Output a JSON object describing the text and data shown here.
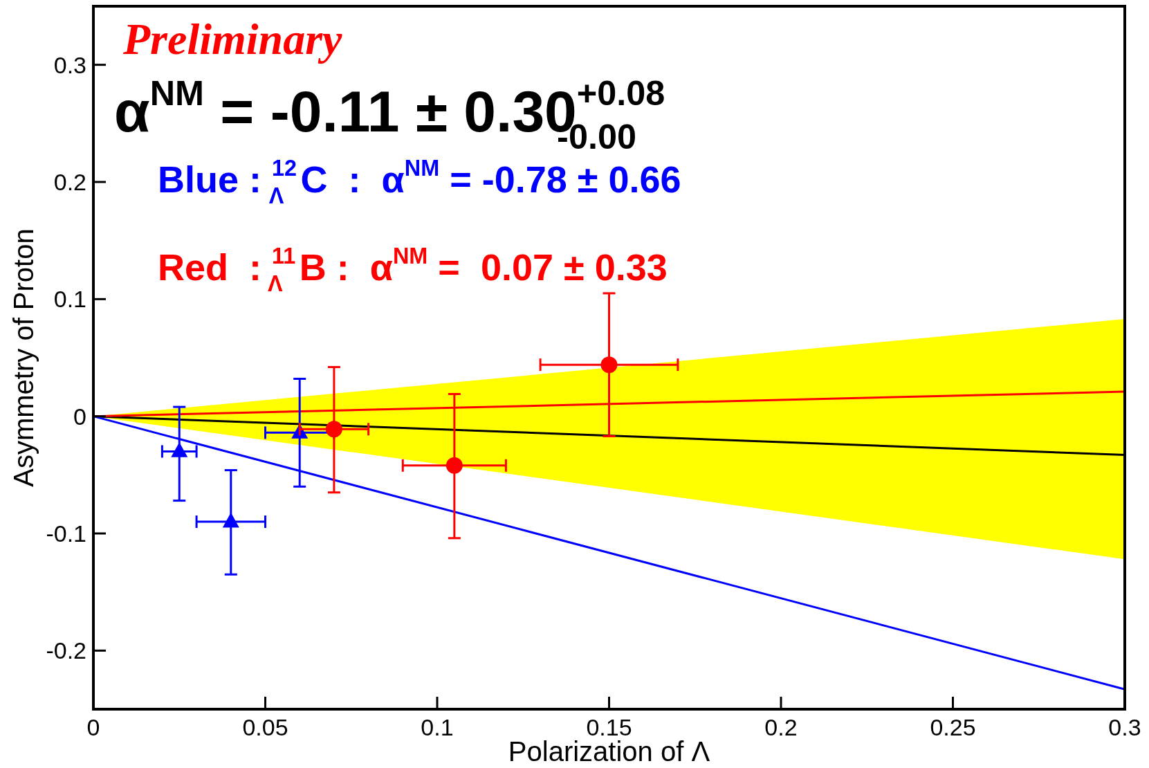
{
  "chart_data": {
    "type": "scatter",
    "xlabel": "Polarization of Λ",
    "ylabel": "Asymmetry of Proton",
    "xlim": [
      0,
      0.3
    ],
    "ylim": [
      -0.25,
      0.35
    ],
    "xticks": [
      0,
      0.05,
      0.1,
      0.15,
      0.2,
      0.25,
      0.3
    ],
    "yticks": [
      -0.2,
      -0.1,
      0,
      0.1,
      0.2,
      0.3
    ],
    "grid": false,
    "annotations": [
      "Preliminary",
      "α$^{NM}$ = -0.11 ± 0.30$^{+0.08}$$_{-0.00}$",
      "Blue : $^{12}$$_{Λ}$C  :  α$^{NM}$ = -0.78 ± 0.66",
      "Red  : $^{11}$$_{Λ}$B :  α$^{NM}$ =  0.07 ± 0.33"
    ],
    "series": [
      {
        "type": "line",
        "color": "#000000",
        "x": [
          0,
          0.3
        ],
        "values": [
          0,
          -0.033
        ],
        "lower": [
          0,
          -0.122
        ],
        "upper": [
          0,
          0.083
        ]
      },
      {
        "type": "line",
        "color": "#ff0000",
        "x": [
          0,
          0.3
        ],
        "values": [
          0,
          0.021
        ]
      },
      {
        "type": "line",
        "color": "#0000ff",
        "x": [
          0,
          0.3
        ],
        "values": [
          0,
          -0.233
        ]
      },
      {
        "color": "#0000ff",
        "marker": "triangle",
        "x": [
          0.025,
          0.04,
          0.06
        ],
        "values": [
          -0.03,
          -0.09,
          -0.014
        ],
        "errors": [
          [
            -0.072,
            0.008
          ],
          [
            -0.135,
            -0.046
          ],
          [
            -0.06,
            0.032
          ]
        ],
        "xerrors": [
          0.005,
          0.01,
          0.01
        ]
      },
      {
        "color": "#ff0000",
        "marker": "circle",
        "x": [
          0.07,
          0.105,
          0.15
        ],
        "values": [
          -0.011,
          -0.042,
          0.044
        ],
        "errors": [
          [
            -0.065,
            0.042
          ],
          [
            -0.104,
            0.019
          ],
          [
            -0.017,
            0.105
          ]
        ],
        "xerrors": [
          0.01,
          0.015,
          0.02
        ]
      }
    ]
  }
}
